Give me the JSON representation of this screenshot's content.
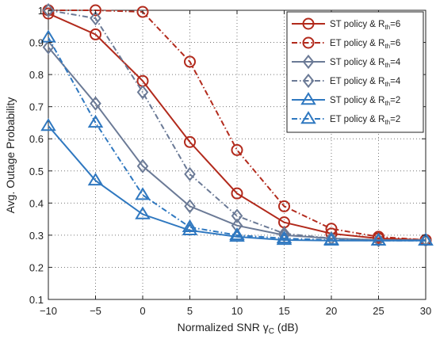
{
  "chart_data": {
    "type": "line",
    "xlabel": "Normalized SNR γ",
    "xlabel_sub": "C",
    "xlabel_tail": " (dB)",
    "ylabel": "Avg. Outage Probability",
    "xlim": [
      -10,
      30
    ],
    "ylim": [
      0.1,
      1
    ],
    "xticks": [
      -10,
      -5,
      0,
      5,
      10,
      15,
      20,
      25,
      30
    ],
    "xtick_labels": [
      "−10",
      "−5",
      "0",
      "5",
      "10",
      "15",
      "20",
      "25",
      "30"
    ],
    "yticks": [
      0.1,
      0.2,
      0.3,
      0.4,
      0.5,
      0.6,
      0.7,
      0.8,
      0.9,
      1
    ],
    "ytick_labels": [
      "0.1",
      "0.2",
      "0.3",
      "0.4",
      "0.5",
      "0.6",
      "0.7",
      "0.8",
      "0.9",
      "1"
    ],
    "grid": true,
    "legend_position": "top-right",
    "x": [
      -10,
      -5,
      0,
      5,
      10,
      15,
      20,
      25,
      30
    ],
    "series": [
      {
        "name": "ST policy & R",
        "name_sub": "th",
        "name_tail": "=6",
        "color": "#b22a1c",
        "dash": "solid",
        "marker": "circle",
        "values": [
          0.99,
          0.925,
          0.78,
          0.59,
          0.43,
          0.34,
          0.305,
          0.29,
          0.285
        ]
      },
      {
        "name": "ET policy & R",
        "name_sub": "th",
        "name_tail": "=6",
        "color": "#b22a1c",
        "dash": "dashdot",
        "marker": "circle",
        "values": [
          1.0,
          1.0,
          0.995,
          0.84,
          0.565,
          0.39,
          0.32,
          0.295,
          0.285
        ]
      },
      {
        "name": "ST policy & R",
        "name_sub": "th",
        "name_tail": "=4",
        "color": "#6b7a96",
        "dash": "solid",
        "marker": "diamond",
        "values": [
          0.885,
          0.71,
          0.515,
          0.39,
          0.33,
          0.3,
          0.29,
          0.285,
          0.285
        ]
      },
      {
        "name": "ET policy & R",
        "name_sub": "th",
        "name_tail": "=4",
        "color": "#6b7a96",
        "dash": "dashdot",
        "marker": "diamond",
        "values": [
          1.0,
          0.975,
          0.745,
          0.49,
          0.36,
          0.305,
          0.29,
          0.285,
          0.285
        ]
      },
      {
        "name": "ST policy & R",
        "name_sub": "th",
        "name_tail": "=2",
        "color": "#2f78c0",
        "dash": "solid",
        "marker": "triangle",
        "values": [
          0.64,
          0.47,
          0.365,
          0.315,
          0.295,
          0.285,
          0.283,
          0.283,
          0.283
        ]
      },
      {
        "name": "ET policy & R",
        "name_sub": "th",
        "name_tail": "=2",
        "color": "#2f78c0",
        "dash": "dashdot",
        "marker": "triangle",
        "values": [
          0.915,
          0.65,
          0.425,
          0.325,
          0.3,
          0.29,
          0.285,
          0.283,
          0.283
        ]
      }
    ]
  }
}
